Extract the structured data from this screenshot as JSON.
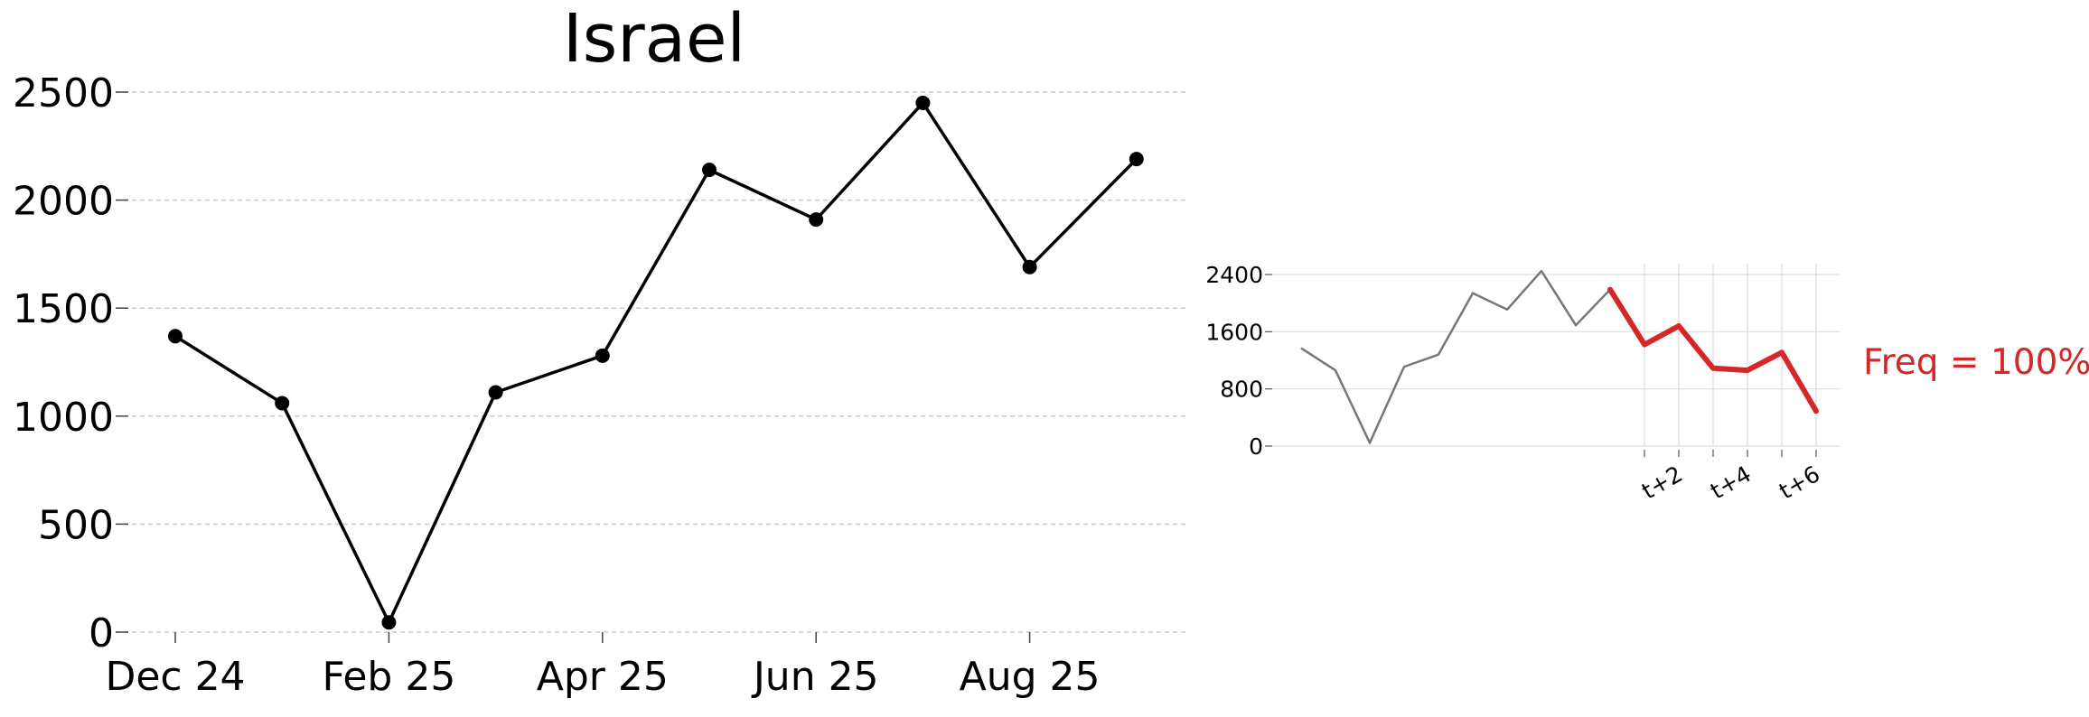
{
  "chart_data": [
    {
      "type": "line",
      "title": "Israel",
      "xlabel": "",
      "ylabel": "",
      "x": [
        "Dec 24",
        "Jan 25",
        "Feb 25",
        "Mar 25",
        "Apr 25",
        "May 25",
        "Jun 25",
        "Jul 25",
        "Aug 25",
        "Sep 25"
      ],
      "x_tick_labels": [
        "Dec 24",
        "Feb 25",
        "Apr 25",
        "Jun 25",
        "Aug 25"
      ],
      "series": [
        {
          "values": [
            1370,
            1060,
            45,
            1110,
            1280,
            2140,
            1910,
            2450,
            1690,
            2190
          ]
        }
      ],
      "ylim": [
        0,
        2500
      ],
      "yticks": [
        0,
        500,
        1000,
        1500,
        2000,
        2500
      ],
      "grid": "horizontal dashed",
      "color": "#000000"
    },
    {
      "type": "line",
      "title": "",
      "x_tick_labels": [
        "t+2",
        "t+4",
        "t+6"
      ],
      "history": [
        1370,
        1060,
        45,
        1110,
        1280,
        2140,
        1910,
        2450,
        1690,
        2190
      ],
      "forecast": [
        2190,
        1420,
        1680,
        1090,
        1060,
        1310,
        490
      ],
      "ylim": [
        0,
        2400
      ],
      "yticks": [
        0,
        800,
        1600,
        2400
      ],
      "grid": "both",
      "history_color": "#777777",
      "forecast_color": "#d62728"
    }
  ],
  "annotation": {
    "text": "Freq = 100%",
    "color": "#d62728"
  }
}
